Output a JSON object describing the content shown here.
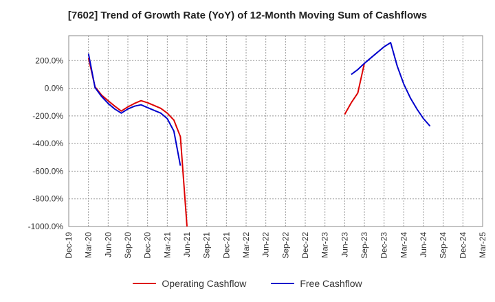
{
  "chart_data": {
    "type": "line",
    "title": "[7602]  Trend of Growth Rate (YoY) of 12-Month Moving Sum of Cashflows",
    "xlabel": "",
    "ylabel": "",
    "x_ticks": [
      "Dec-19",
      "Mar-20",
      "Jun-20",
      "Sep-20",
      "Dec-20",
      "Mar-21",
      "Jun-21",
      "Sep-21",
      "Dec-21",
      "Mar-22",
      "Jun-22",
      "Sep-22",
      "Dec-22",
      "Mar-23",
      "Jun-23",
      "Sep-23",
      "Dec-23",
      "Mar-24",
      "Jun-24",
      "Sep-24",
      "Dec-24",
      "Mar-25"
    ],
    "y_ticks": [
      "200.0%",
      "0.0%",
      "-200.0%",
      "-400.0%",
      "-600.0%",
      "-800.0%",
      "-1000.0%"
    ],
    "ylim": [
      -1000,
      380
    ],
    "grid": true,
    "legend_position": "bottom",
    "series": [
      {
        "name": "Operating Cashflow",
        "color": "#dd0000",
        "points": [
          [
            "2020-03-31",
            220
          ],
          [
            "2020-04-30",
            10
          ],
          [
            "2020-05-31",
            -50
          ],
          [
            "2020-06-30",
            -90
          ],
          [
            "2020-07-31",
            -130
          ],
          [
            "2020-08-31",
            -165
          ],
          [
            "2020-09-30",
            -135
          ],
          [
            "2020-10-31",
            -110
          ],
          [
            "2020-11-30",
            -90
          ],
          [
            "2020-12-31",
            -105
          ],
          [
            "2021-01-31",
            -125
          ],
          [
            "2021-02-28",
            -145
          ],
          [
            "2021-03-31",
            -180
          ],
          [
            "2021-04-30",
            -230
          ],
          [
            "2021-05-31",
            -350
          ],
          [
            "2021-06-30",
            -1000
          ]
        ]
      },
      {
        "name": "",
        "color": "#dd0000",
        "points": [
          [
            "2023-06-30",
            -190
          ],
          [
            "2023-07-31",
            -105
          ],
          [
            "2023-08-31",
            -35
          ],
          [
            "2023-09-30",
            180
          ]
        ]
      },
      {
        "name": "Free Cashflow",
        "color": "#0000cc",
        "points": [
          [
            "2020-03-31",
            250
          ],
          [
            "2020-04-30",
            5
          ],
          [
            "2020-05-31",
            -60
          ],
          [
            "2020-06-30",
            -110
          ],
          [
            "2020-07-31",
            -150
          ],
          [
            "2020-08-31",
            -180
          ],
          [
            "2020-09-30",
            -150
          ],
          [
            "2020-10-31",
            -130
          ],
          [
            "2020-11-30",
            -120
          ],
          [
            "2020-12-31",
            -140
          ],
          [
            "2021-01-31",
            -160
          ],
          [
            "2021-02-28",
            -180
          ],
          [
            "2021-03-31",
            -220
          ],
          [
            "2021-04-30",
            -310
          ],
          [
            "2021-05-31",
            -560
          ]
        ]
      },
      {
        "name": "",
        "color": "#0000cc",
        "points": [
          [
            "2023-07-31",
            100
          ],
          [
            "2023-08-31",
            135
          ],
          [
            "2023-09-30",
            180
          ],
          [
            "2023-10-31",
            220
          ],
          [
            "2023-11-30",
            260
          ],
          [
            "2023-12-31",
            300
          ],
          [
            "2024-01-31",
            330
          ],
          [
            "2024-02-29",
            160
          ],
          [
            "2024-03-31",
            30
          ],
          [
            "2024-04-30",
            -70
          ],
          [
            "2024-05-31",
            -150
          ],
          [
            "2024-06-30",
            -220
          ],
          [
            "2024-07-31",
            -275
          ]
        ]
      }
    ]
  },
  "legend": [
    {
      "label": "Operating Cashflow",
      "color": "#dd0000"
    },
    {
      "label": "Free Cashflow",
      "color": "#0000cc"
    }
  ]
}
